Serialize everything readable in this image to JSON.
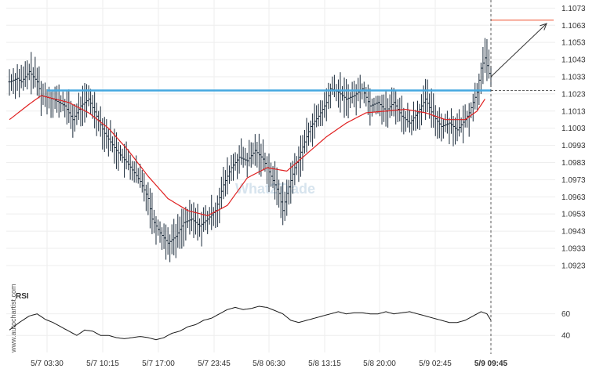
{
  "chart_data": {
    "type": "candlestick",
    "instrument": "",
    "price_axis": {
      "ticks": [
        "1.1073",
        "1.1063",
        "1.1053",
        "1.1043",
        "1.1033",
        "1.1023",
        "1.1013",
        "1.1003",
        "1.0993",
        "1.0983",
        "1.0973",
        "1.0963",
        "1.0953",
        "1.0943",
        "1.0933",
        "1.0923"
      ],
      "ylim": [
        1.0917,
        1.1075
      ],
      "side": "right"
    },
    "time_axis": {
      "ticks": [
        "5/7 03:30",
        "5/7 10:15",
        "5/7 17:00",
        "5/7 23:45",
        "5/8 06:30",
        "5/8 13:15",
        "5/8 20:00",
        "5/9 02:45",
        "5/9 09:45"
      ],
      "highlighted": "5/9 09:45"
    },
    "levels": {
      "resistance": 1.1025,
      "target": 1.1066,
      "last": 1.1025
    },
    "resistance_color": "#45a8e0",
    "ma_color": "#e02020",
    "target_color": "#f06040",
    "candle_color": "#1a2a3a",
    "price_keypoints": [
      [
        0,
        1.103
      ],
      [
        4,
        1.1032
      ],
      [
        6,
        1.103
      ],
      [
        10,
        1.1036
      ],
      [
        14,
        1.103
      ],
      [
        16,
        1.1022
      ],
      [
        22,
        1.102
      ],
      [
        28,
        1.1016
      ],
      [
        32,
        1.1008
      ],
      [
        36,
        1.1016
      ],
      [
        40,
        1.102
      ],
      [
        44,
        1.101
      ],
      [
        48,
        1.1
      ],
      [
        54,
        1.099
      ],
      [
        60,
        1.0982
      ],
      [
        66,
        1.0972
      ],
      [
        70,
        1.0962
      ],
      [
        72,
        1.095
      ],
      [
        76,
        1.0942
      ],
      [
        80,
        1.0936
      ],
      [
        84,
        1.094
      ],
      [
        88,
        1.0948
      ],
      [
        92,
        1.095
      ],
      [
        96,
        1.0946
      ],
      [
        100,
        1.095
      ],
      [
        104,
        1.0955
      ],
      [
        108,
        1.097
      ],
      [
        112,
        1.098
      ],
      [
        116,
        1.0986
      ],
      [
        120,
        1.0984
      ],
      [
        124,
        1.099
      ],
      [
        128,
        1.0985
      ],
      [
        132,
        1.0975
      ],
      [
        136,
        1.0965
      ],
      [
        138,
        1.0955
      ],
      [
        140,
        1.0965
      ],
      [
        144,
        1.098
      ],
      [
        148,
        1.0992
      ],
      [
        152,
        1.1004
      ],
      [
        156,
        1.101
      ],
      [
        160,
        1.1018
      ],
      [
        162,
        1.1026
      ],
      [
        166,
        1.1024
      ],
      [
        170,
        1.102
      ],
      [
        174,
        1.1022
      ],
      [
        178,
        1.1026
      ],
      [
        182,
        1.1016
      ],
      [
        186,
        1.1018
      ],
      [
        190,
        1.1013
      ],
      [
        194,
        1.1018
      ],
      [
        198,
        1.101
      ],
      [
        202,
        1.1006
      ],
      [
        206,
        1.1012
      ],
      [
        210,
        1.102
      ],
      [
        214,
        1.101
      ],
      [
        218,
        1.1004
      ],
      [
        222,
        1.1006
      ],
      [
        226,
        1.1002
      ],
      [
        230,
        1.1008
      ],
      [
        232,
        1.1012
      ],
      [
        234,
        1.1018
      ],
      [
        236,
        1.1024
      ],
      [
        238,
        1.1038
      ],
      [
        240,
        1.1044
      ],
      [
        242,
        1.1035
      ],
      [
        243,
        1.1033
      ]
    ],
    "ma_keypoints": [
      [
        0,
        1.1008
      ],
      [
        10,
        1.1017
      ],
      [
        16,
        1.1022
      ],
      [
        30,
        1.1018
      ],
      [
        40,
        1.1012
      ],
      [
        50,
        1.1003
      ],
      [
        60,
        1.099
      ],
      [
        70,
        1.0975
      ],
      [
        80,
        1.0962
      ],
      [
        90,
        1.0955
      ],
      [
        100,
        1.0952
      ],
      [
        110,
        1.0958
      ],
      [
        120,
        1.0974
      ],
      [
        130,
        1.098
      ],
      [
        140,
        1.0978
      ],
      [
        150,
        1.0988
      ],
      [
        160,
        1.0998
      ],
      [
        170,
        1.1006
      ],
      [
        180,
        1.1012
      ],
      [
        190,
        1.1013
      ],
      [
        200,
        1.1014
      ],
      [
        210,
        1.1012
      ],
      [
        220,
        1.1008
      ],
      [
        230,
        1.1008
      ],
      [
        236,
        1.1013
      ],
      [
        240,
        1.102
      ]
    ],
    "rsi": {
      "label": "RSI",
      "ticks": [
        "60",
        "40"
      ],
      "ylim": [
        30,
        75
      ],
      "keypoints": [
        [
          0,
          45
        ],
        [
          5,
          52
        ],
        [
          10,
          58
        ],
        [
          14,
          60
        ],
        [
          18,
          55
        ],
        [
          22,
          52
        ],
        [
          26,
          48
        ],
        [
          30,
          44
        ],
        [
          34,
          40
        ],
        [
          38,
          45
        ],
        [
          42,
          44
        ],
        [
          46,
          40
        ],
        [
          50,
          40
        ],
        [
          54,
          38
        ],
        [
          58,
          37
        ],
        [
          62,
          38
        ],
        [
          66,
          39
        ],
        [
          70,
          38
        ],
        [
          74,
          36
        ],
        [
          78,
          38
        ],
        [
          82,
          42
        ],
        [
          86,
          44
        ],
        [
          90,
          48
        ],
        [
          94,
          50
        ],
        [
          98,
          54
        ],
        [
          102,
          56
        ],
        [
          106,
          60
        ],
        [
          110,
          64
        ],
        [
          114,
          66
        ],
        [
          118,
          64
        ],
        [
          122,
          65
        ],
        [
          126,
          67
        ],
        [
          130,
          66
        ],
        [
          134,
          63
        ],
        [
          138,
          60
        ],
        [
          142,
          54
        ],
        [
          146,
          52
        ],
        [
          150,
          54
        ],
        [
          154,
          56
        ],
        [
          158,
          58
        ],
        [
          162,
          60
        ],
        [
          166,
          62
        ],
        [
          170,
          60
        ],
        [
          174,
          61
        ],
        [
          178,
          61
        ],
        [
          182,
          60
        ],
        [
          186,
          60
        ],
        [
          190,
          62
        ],
        [
          194,
          60
        ],
        [
          198,
          61
        ],
        [
          202,
          62
        ],
        [
          206,
          60
        ],
        [
          210,
          58
        ],
        [
          214,
          56
        ],
        [
          218,
          54
        ],
        [
          222,
          52
        ],
        [
          226,
          52
        ],
        [
          230,
          54
        ],
        [
          234,
          58
        ],
        [
          238,
          62
        ],
        [
          241,
          60
        ],
        [
          243,
          54
        ]
      ]
    },
    "watermark": "What2Trade",
    "branding": "www.autochartist.com",
    "grid": true
  }
}
